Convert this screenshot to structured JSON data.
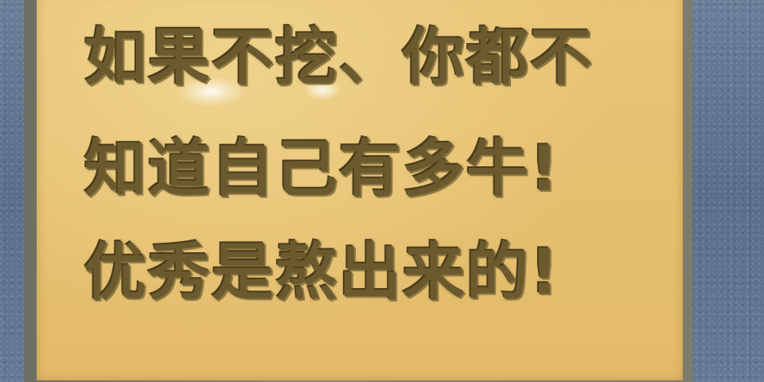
{
  "sign": {
    "lines": [
      "如果不挖、你都不",
      "知道自己有多牛!",
      "优秀是熬出来的!"
    ]
  },
  "colors": {
    "sign_background": "#e6c070",
    "cutout_text": "#6b5a2e",
    "wall": "#5f7490"
  }
}
